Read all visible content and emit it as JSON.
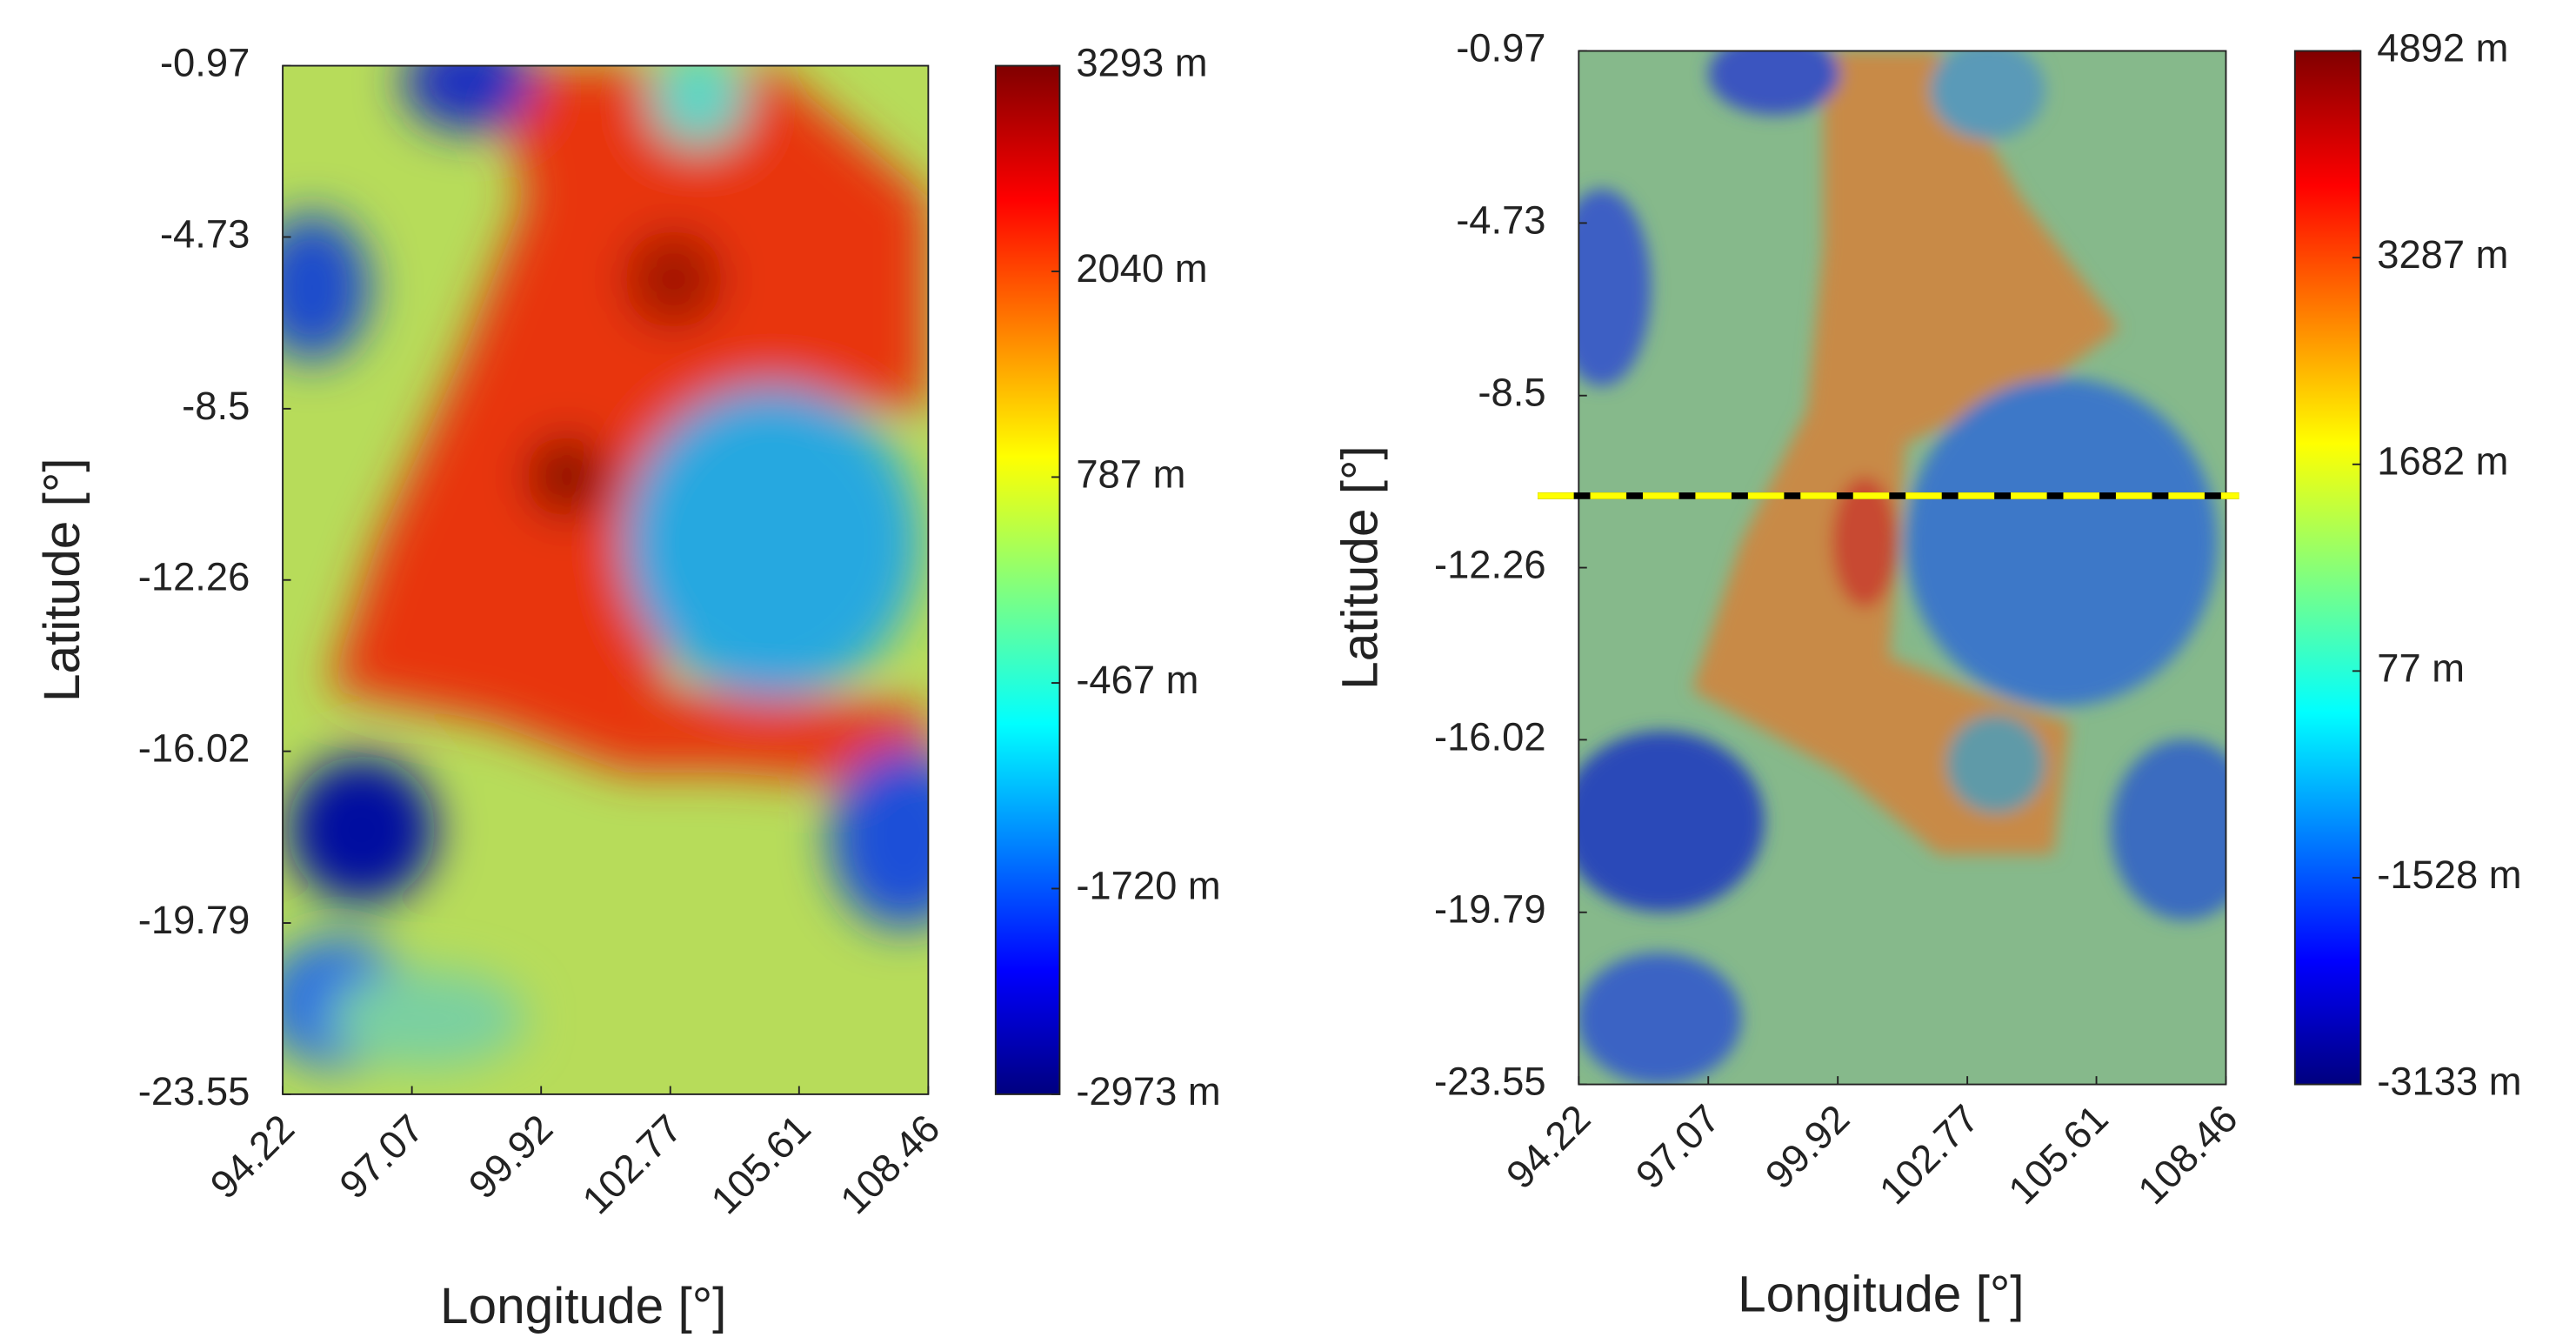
{
  "chart_data": [
    {
      "type": "heatmap",
      "xlabel": "Longitude [°]",
      "ylabel": "Latitude [°]",
      "xlim": [
        94.22,
        108.46
      ],
      "xticks": [
        94.22,
        97.07,
        99.92,
        102.77,
        105.61,
        108.46
      ],
      "ylim": [
        -23.55,
        -0.97
      ],
      "yticks": [
        -0.97,
        -4.73,
        -8.5,
        -12.26,
        -16.02,
        -19.79,
        -23.55
      ],
      "clim": [
        -2973,
        3293
      ],
      "cticks": [
        {
          "value": 3293,
          "label": "3293 m"
        },
        {
          "value": 2040,
          "label": "2040 m"
        },
        {
          "value": 787,
          "label": "787 m"
        },
        {
          "value": -467,
          "label": "-467 m"
        },
        {
          "value": -1720,
          "label": "-1720 m"
        },
        {
          "value": -2973,
          "label": "-2973 m"
        }
      ]
    },
    {
      "type": "heatmap",
      "xlabel": "Longitude [°]",
      "ylabel": "Latitude [°]",
      "xlim": [
        94.22,
        108.46
      ],
      "xticks": [
        94.22,
        97.07,
        99.92,
        102.77,
        105.61,
        108.46
      ],
      "ylim": [
        -23.55,
        -0.97
      ],
      "yticks": [
        -0.97,
        -4.73,
        -8.5,
        -12.26,
        -16.02,
        -19.79,
        -23.55
      ],
      "clim": [
        -3133,
        4892
      ],
      "cticks": [
        {
          "value": 4892,
          "label": "4892 m"
        },
        {
          "value": 3287,
          "label": "3287 m"
        },
        {
          "value": 1682,
          "label": "1682 m"
        },
        {
          "value": 77,
          "label": "77 m"
        },
        {
          "value": -1528,
          "label": "-1528 m"
        },
        {
          "value": -3133,
          "label": "-3133 m"
        }
      ],
      "hline": {
        "y": -10.69,
        "color": "#ffff00"
      }
    }
  ]
}
